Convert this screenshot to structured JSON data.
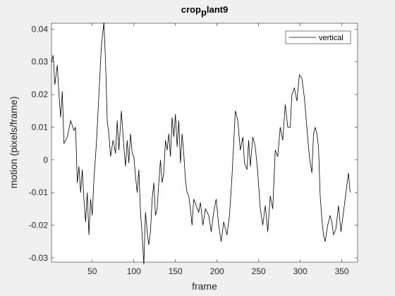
{
  "chart_data": {
    "type": "line",
    "title": "crop_plant9",
    "xlabel": "frame",
    "ylabel": "motion (pixels/frame)",
    "xlim": [
      1,
      369
    ],
    "ylim": [
      -0.0313,
      0.0418
    ],
    "xticks": [
      50,
      100,
      150,
      200,
      250,
      300,
      350
    ],
    "yticks": [
      -0.03,
      -0.02,
      -0.01,
      0,
      0.01,
      0.02,
      0.03,
      0.04
    ],
    "legend": "upper right",
    "grid": false,
    "series": [
      {
        "name": "vertical",
        "color": "#000000",
        "x": [
          1,
          3,
          5,
          8,
          10,
          12,
          14,
          16,
          20,
          24,
          28,
          30,
          32,
          34,
          36,
          38,
          40,
          42,
          44,
          46,
          48,
          50,
          52,
          55,
          58,
          61,
          64,
          66,
          68,
          70,
          72,
          75,
          78,
          80,
          82,
          85,
          88,
          90,
          92,
          94,
          96,
          98,
          100,
          102,
          104,
          106,
          108,
          110,
          112,
          114,
          116,
          118,
          120,
          122,
          124,
          126,
          128,
          130,
          132,
          134,
          136,
          138,
          140,
          142,
          144,
          146,
          148,
          150,
          152,
          154,
          156,
          158,
          160,
          162,
          164,
          166,
          168,
          170,
          172,
          175,
          178,
          180,
          183,
          186,
          190,
          193,
          196,
          199,
          202,
          205,
          208,
          212,
          215,
          218,
          220,
          222,
          225,
          228,
          231,
          233,
          236,
          238,
          240,
          243,
          246,
          249,
          252,
          255,
          258,
          261,
          264,
          267,
          270,
          273,
          276,
          279,
          282,
          285,
          288,
          290,
          293,
          296,
          299,
          302,
          305,
          308,
          311,
          314,
          316,
          318,
          320,
          322,
          324,
          326,
          328,
          330,
          333,
          336,
          338,
          340,
          343,
          346,
          349,
          352,
          355,
          358,
          360
        ],
        "values": [
          0.03,
          0.032,
          0.023,
          0.029,
          0.02,
          0.013,
          0.021,
          0.005,
          0.007,
          0.012,
          0.009,
          0.01,
          -0.007,
          -0.002,
          -0.01,
          -0.003,
          -0.012,
          -0.019,
          -0.01,
          -0.023,
          -0.012,
          -0.017,
          -0.006,
          0.005,
          0.02,
          0.035,
          0.042,
          0.03,
          0.012,
          0.008,
          0.001,
          0.006,
          0.002,
          0.012,
          0.003,
          0.015,
          0.004,
          -0.002,
          0.006,
          -0.001,
          0.008,
          0.002,
          0.001,
          -0.005,
          -0.01,
          -0.003,
          -0.016,
          -0.023,
          -0.032,
          -0.016,
          -0.022,
          -0.026,
          -0.022,
          -0.012,
          -0.007,
          -0.017,
          -0.015,
          -0.007,
          0.0,
          -0.007,
          -0.004,
          0.006,
          0.003,
          0.008,
          0.001,
          0.013,
          0.007,
          0.014,
          0.004,
          0.012,
          -0.001,
          0.008,
          0.002,
          -0.006,
          -0.01,
          -0.011,
          -0.015,
          -0.02,
          -0.012,
          -0.014,
          -0.016,
          -0.013,
          -0.02,
          -0.015,
          -0.017,
          -0.022,
          -0.016,
          -0.012,
          -0.02,
          -0.025,
          -0.019,
          -0.023,
          -0.017,
          -0.005,
          0.005,
          0.015,
          0.012,
          0.003,
          0.007,
          -0.001,
          -0.003,
          0.006,
          -0.002,
          0.007,
          0.004,
          -0.004,
          -0.015,
          -0.02,
          -0.014,
          -0.022,
          -0.011,
          -0.015,
          0.003,
          0.001,
          0.01,
          0.006,
          0.017,
          0.01,
          0.01,
          0.02,
          0.022,
          0.018,
          0.026,
          0.025,
          0.019,
          0.01,
          0.001,
          -0.004,
          0.008,
          0.01,
          0.008,
          0.004,
          -0.011,
          -0.018,
          -0.023,
          -0.025,
          -0.02,
          -0.017,
          -0.019,
          -0.023,
          -0.021,
          -0.014,
          -0.022,
          -0.016,
          -0.01,
          -0.004,
          -0.01
        ]
      }
    ]
  }
}
